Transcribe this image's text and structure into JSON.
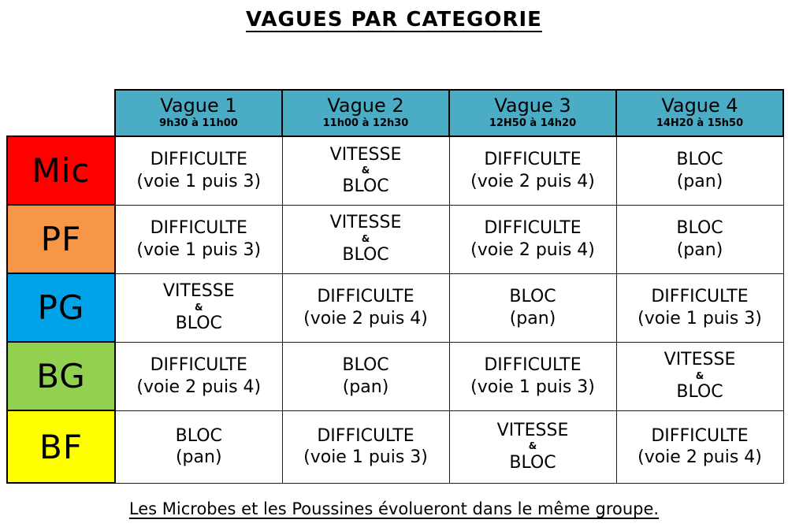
{
  "title": "VAGUES PAR CATEGORIE",
  "footer": "Les Microbes et les Poussines évolueront dans le même groupe.",
  "colors": {
    "wave_header_bg": "#4BACC6",
    "border": "#000000",
    "cell_bg": "#FFFFFF"
  },
  "table": {
    "waves": [
      {
        "label": "Vague 1",
        "time": "9h30 à 11h00"
      },
      {
        "label": "Vague 2",
        "time": "11h00 à 12h30"
      },
      {
        "label": "Vague 3",
        "time": "12H50 à 14h20"
      },
      {
        "label": "Vague 4",
        "time": "14H20 à 15h50"
      }
    ],
    "rows": [
      {
        "category": "Mic",
        "color": "#FF0000",
        "cells": [
          [
            "DIFFICULTE",
            "(voie 1 puis 3)"
          ],
          [
            "VITESSE",
            "&",
            "BLOC"
          ],
          [
            "DIFFICULTE",
            "(voie 2 puis 4)"
          ],
          [
            "BLOC",
            "(pan)"
          ]
        ]
      },
      {
        "category": "PF",
        "color": "#F79646",
        "cells": [
          [
            "DIFFICULTE",
            "(voie 1 puis 3)"
          ],
          [
            "VITESSE",
            "&",
            "BLOC"
          ],
          [
            "DIFFICULTE",
            "(voie 2 puis 4)"
          ],
          [
            "BLOC",
            "(pan)"
          ]
        ]
      },
      {
        "category": "PG",
        "color": "#00A2E8",
        "cells": [
          [
            "VITESSE",
            "&",
            "BLOC"
          ],
          [
            "DIFFICULTE",
            "(voie 2 puis 4)"
          ],
          [
            "BLOC",
            "(pan)"
          ],
          [
            "DIFFICULTE",
            "(voie 1 puis 3)"
          ]
        ]
      },
      {
        "category": "BG",
        "color": "#92D050",
        "cells": [
          [
            "DIFFICULTE",
            "(voie 2 puis 4)"
          ],
          [
            "BLOC",
            "(pan)"
          ],
          [
            "DIFFICULTE",
            "(voie 1 puis 3)"
          ],
          [
            "VITESSE",
            "&",
            "BLOC"
          ]
        ]
      },
      {
        "category": "BF",
        "color": "#FFFF00",
        "cells": [
          [
            "BLOC",
            "(pan)"
          ],
          [
            "DIFFICULTE",
            "(voie 1 puis 3)"
          ],
          [
            "VITESSE",
            "&",
            "BLOC"
          ],
          [
            "DIFFICULTE",
            "(voie 2 puis 4)"
          ]
        ]
      }
    ]
  }
}
